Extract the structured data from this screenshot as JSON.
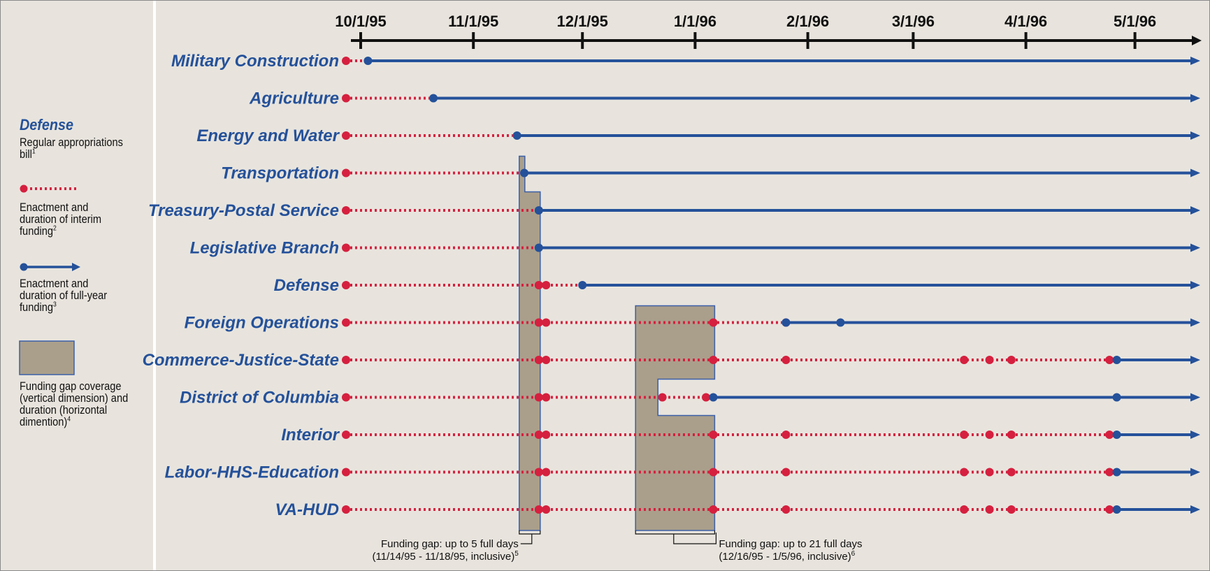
{
  "legend": {
    "title": "Defense",
    "bill_text": "Regular appropriations bill",
    "bill_sup": "1",
    "interim_text": "Enactment and duration of interim funding",
    "interim_sup": "2",
    "fullyear_text": "Enactment and duration of full-year funding",
    "fullyear_sup": "3",
    "gap_text": "Funding gap coverage (vertical dimension) and duration (horizontal dimention)",
    "gap_sup": "4"
  },
  "colors": {
    "background": "#e8e4dd",
    "interim": "#d5203f",
    "fullyear": "#24519a",
    "gap_fill": "#aa9f8b",
    "gap_border": "#3b5fa8",
    "label": "#24519a"
  },
  "axis": {
    "start": "1995-10-01",
    "end": "1996-05-31",
    "ticks": [
      "10/1/95",
      "11/1/95",
      "12/1/95",
      "1/1/96",
      "2/1/96",
      "3/1/96",
      "4/1/96",
      "5/1/96"
    ]
  },
  "rows": [
    {
      "name": "Military Construction",
      "interim": [],
      "full_start": "1995-10-03",
      "extra_dots": []
    },
    {
      "name": "Agriculture",
      "interim": [],
      "full_start": "1995-10-21",
      "extra_dots": []
    },
    {
      "name": "Energy and Water",
      "interim": [],
      "full_start": "1995-11-13",
      "extra_dots": []
    },
    {
      "name": "Transportation",
      "interim": [],
      "full_start": "1995-11-15",
      "extra_dots": []
    },
    {
      "name": "Treasury-Postal Service",
      "interim": [],
      "full_start": "1995-11-19",
      "extra_dots": []
    },
    {
      "name": "Legislative Branch",
      "interim": [],
      "full_start": "1995-11-19",
      "extra_dots": []
    },
    {
      "name": "Defense",
      "interim": [
        "1995-11-19",
        "1995-11-21"
      ],
      "full_start": "1995-12-01",
      "extra_dots": []
    },
    {
      "name": "Foreign Operations",
      "interim": [
        "1995-11-19",
        "1995-11-21",
        "1996-01-06",
        "1996-01-26"
      ],
      "full_start": "1996-01-26",
      "extra_dots": [
        "1996-02-10"
      ]
    },
    {
      "name": "Commerce-Justice-State",
      "interim": [
        "1995-11-19",
        "1995-11-21",
        "1996-01-06",
        "1996-01-26",
        "1996-03-15",
        "1996-03-22",
        "1996-03-28",
        "1996-04-24"
      ],
      "full_start": "1996-04-26",
      "extra_dots": []
    },
    {
      "name": "District of Columbia",
      "interim": [
        "1995-11-19",
        "1995-11-21",
        "1995-12-23",
        "1996-01-04"
      ],
      "full_start": "1996-01-06",
      "extra_dots": [
        "1996-04-26"
      ]
    },
    {
      "name": "Interior",
      "interim": [
        "1995-11-19",
        "1995-11-21",
        "1996-01-06",
        "1996-01-26",
        "1996-03-15",
        "1996-03-22",
        "1996-03-28",
        "1996-04-24"
      ],
      "full_start": "1996-04-26",
      "extra_dots": []
    },
    {
      "name": "Labor-HHS-Education",
      "interim": [
        "1995-11-19",
        "1995-11-21",
        "1996-01-06",
        "1996-01-26",
        "1996-03-15",
        "1996-03-22",
        "1996-03-28",
        "1996-04-24"
      ],
      "full_start": "1996-04-26",
      "extra_dots": []
    },
    {
      "name": "VA-HUD",
      "interim": [
        "1995-11-19",
        "1995-11-21",
        "1996-01-06",
        "1996-01-26",
        "1996-03-15",
        "1996-03-22",
        "1996-03-28",
        "1996-04-24"
      ],
      "full_start": "1996-04-26",
      "extra_dots": []
    }
  ],
  "gaps": [
    {
      "label": "Funding gap: up to 5 full days",
      "range": "(11/14/95 - 11/18/95, inclusive)",
      "sup": "5",
      "start": "1995-11-14",
      "end": "1995-11-18",
      "rows_covered": [
        "Transportation",
        "Treasury-Postal Service",
        "Legislative Branch",
        "Defense",
        "Foreign Operations",
        "Commerce-Justice-State",
        "District of Columbia",
        "Interior",
        "Labor-HHS-Education",
        "VA-HUD"
      ]
    },
    {
      "label": "Funding gap: up to 21 full days",
      "range": "(12/16/95 - 1/5/96, inclusive)",
      "sup": "6",
      "start": "1995-12-16",
      "end": "1996-01-05",
      "rows_covered": [
        "Foreign Operations",
        "Commerce-Justice-State",
        "District of Columbia",
        "Interior",
        "Labor-HHS-Education",
        "VA-HUD"
      ]
    }
  ]
}
